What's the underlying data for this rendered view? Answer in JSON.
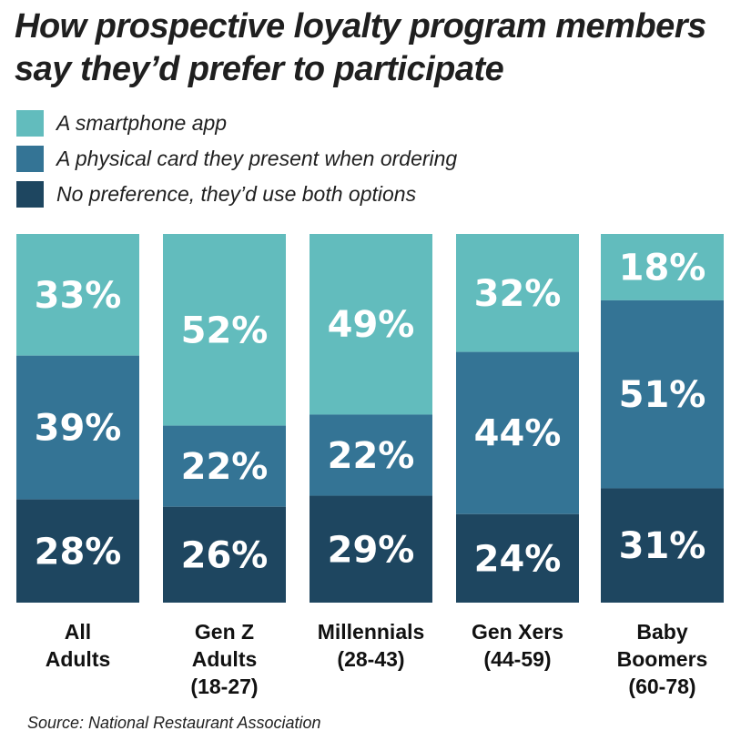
{
  "chart_data": {
    "type": "bar",
    "stacked": true,
    "percent_stacked": true,
    "title": "How prospective loyalty program members say they’d prefer to participate",
    "categories": [
      [
        "All",
        "Adults"
      ],
      [
        "Gen Z",
        "Adults",
        "(18-27)"
      ],
      [
        "Millennials",
        "(28-43)"
      ],
      [
        "Gen Xers",
        "(44-59)"
      ],
      [
        "Baby",
        "Boomers",
        "(60-78)"
      ]
    ],
    "series": [
      {
        "name": "A smartphone app",
        "color": "#62bcbd",
        "values": [
          33,
          52,
          49,
          32,
          18
        ]
      },
      {
        "name": "A physical card they present when ordering",
        "color": "#347495",
        "values": [
          39,
          22,
          22,
          44,
          51
        ]
      },
      {
        "name": "No preference, they’d use both options",
        "color": "#1e4660",
        "values": [
          28,
          26,
          29,
          24,
          31
        ]
      }
    ],
    "value_suffix": "%",
    "legend_position": "top-left",
    "grid": false,
    "source": "Source: National Restaurant Association"
  }
}
